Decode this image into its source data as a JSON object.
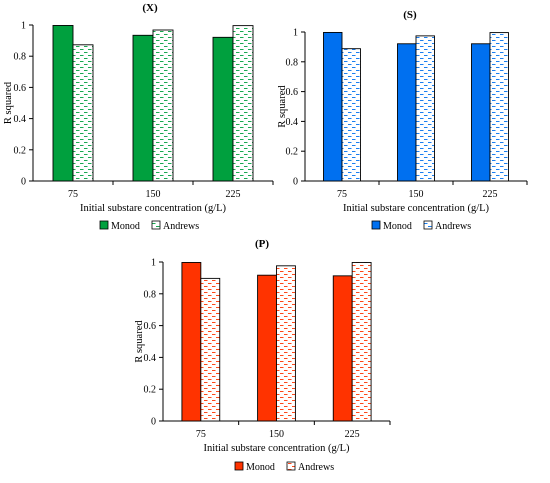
{
  "chart_data": [
    {
      "type": "bar",
      "title": "(X)",
      "xlabel": "Initial substare concentration (g/L)",
      "ylabel": "R squared",
      "categories": [
        "75",
        "150",
        "225"
      ],
      "ylim": [
        0,
        1
      ],
      "yticks": [
        "0",
        "0.2",
        "0.4",
        "0.6",
        "0.8",
        "1"
      ],
      "series": [
        {
          "name": "Monod",
          "values": [
            0.997,
            0.934,
            0.921
          ],
          "color": "#00a03e",
          "pattern": "solid"
        },
        {
          "name": "Andrews",
          "values": [
            0.873,
            0.968,
            0.996
          ],
          "color": "#00a03e",
          "pattern": "dashed"
        }
      ],
      "legend": "bottom"
    },
    {
      "type": "bar",
      "title": "(S)",
      "xlabel": "Initial substare concentration (g/L)",
      "ylabel": "R squared",
      "categories": [
        "75",
        "150",
        "225"
      ],
      "ylim": [
        0,
        1
      ],
      "yticks": [
        "0",
        "0.2",
        "0.4",
        "0.6",
        "0.8",
        "1"
      ],
      "series": [
        {
          "name": "Monod",
          "values": [
            0.997,
            0.921,
            0.921
          ],
          "color": "#0070f0",
          "pattern": "solid"
        },
        {
          "name": "Andrews",
          "values": [
            0.888,
            0.974,
            0.996
          ],
          "color": "#0070f0",
          "pattern": "dashed"
        }
      ],
      "legend": "bottom"
    },
    {
      "type": "bar",
      "title": "(P)",
      "xlabel": "Initial substare concentration (g/L)",
      "ylabel": "R squared",
      "categories": [
        "75",
        "150",
        "225"
      ],
      "ylim": [
        0,
        1
      ],
      "yticks": [
        "0",
        "0.2",
        "0.4",
        "0.6",
        "0.8",
        "1"
      ],
      "series": [
        {
          "name": "Monod",
          "values": [
            0.997,
            0.917,
            0.913
          ],
          "color": "#ff3300",
          "pattern": "solid"
        },
        {
          "name": "Andrews",
          "values": [
            0.897,
            0.976,
            0.997
          ],
          "color": "#ff3300",
          "pattern": "dashed"
        }
      ],
      "legend": "bottom"
    }
  ]
}
